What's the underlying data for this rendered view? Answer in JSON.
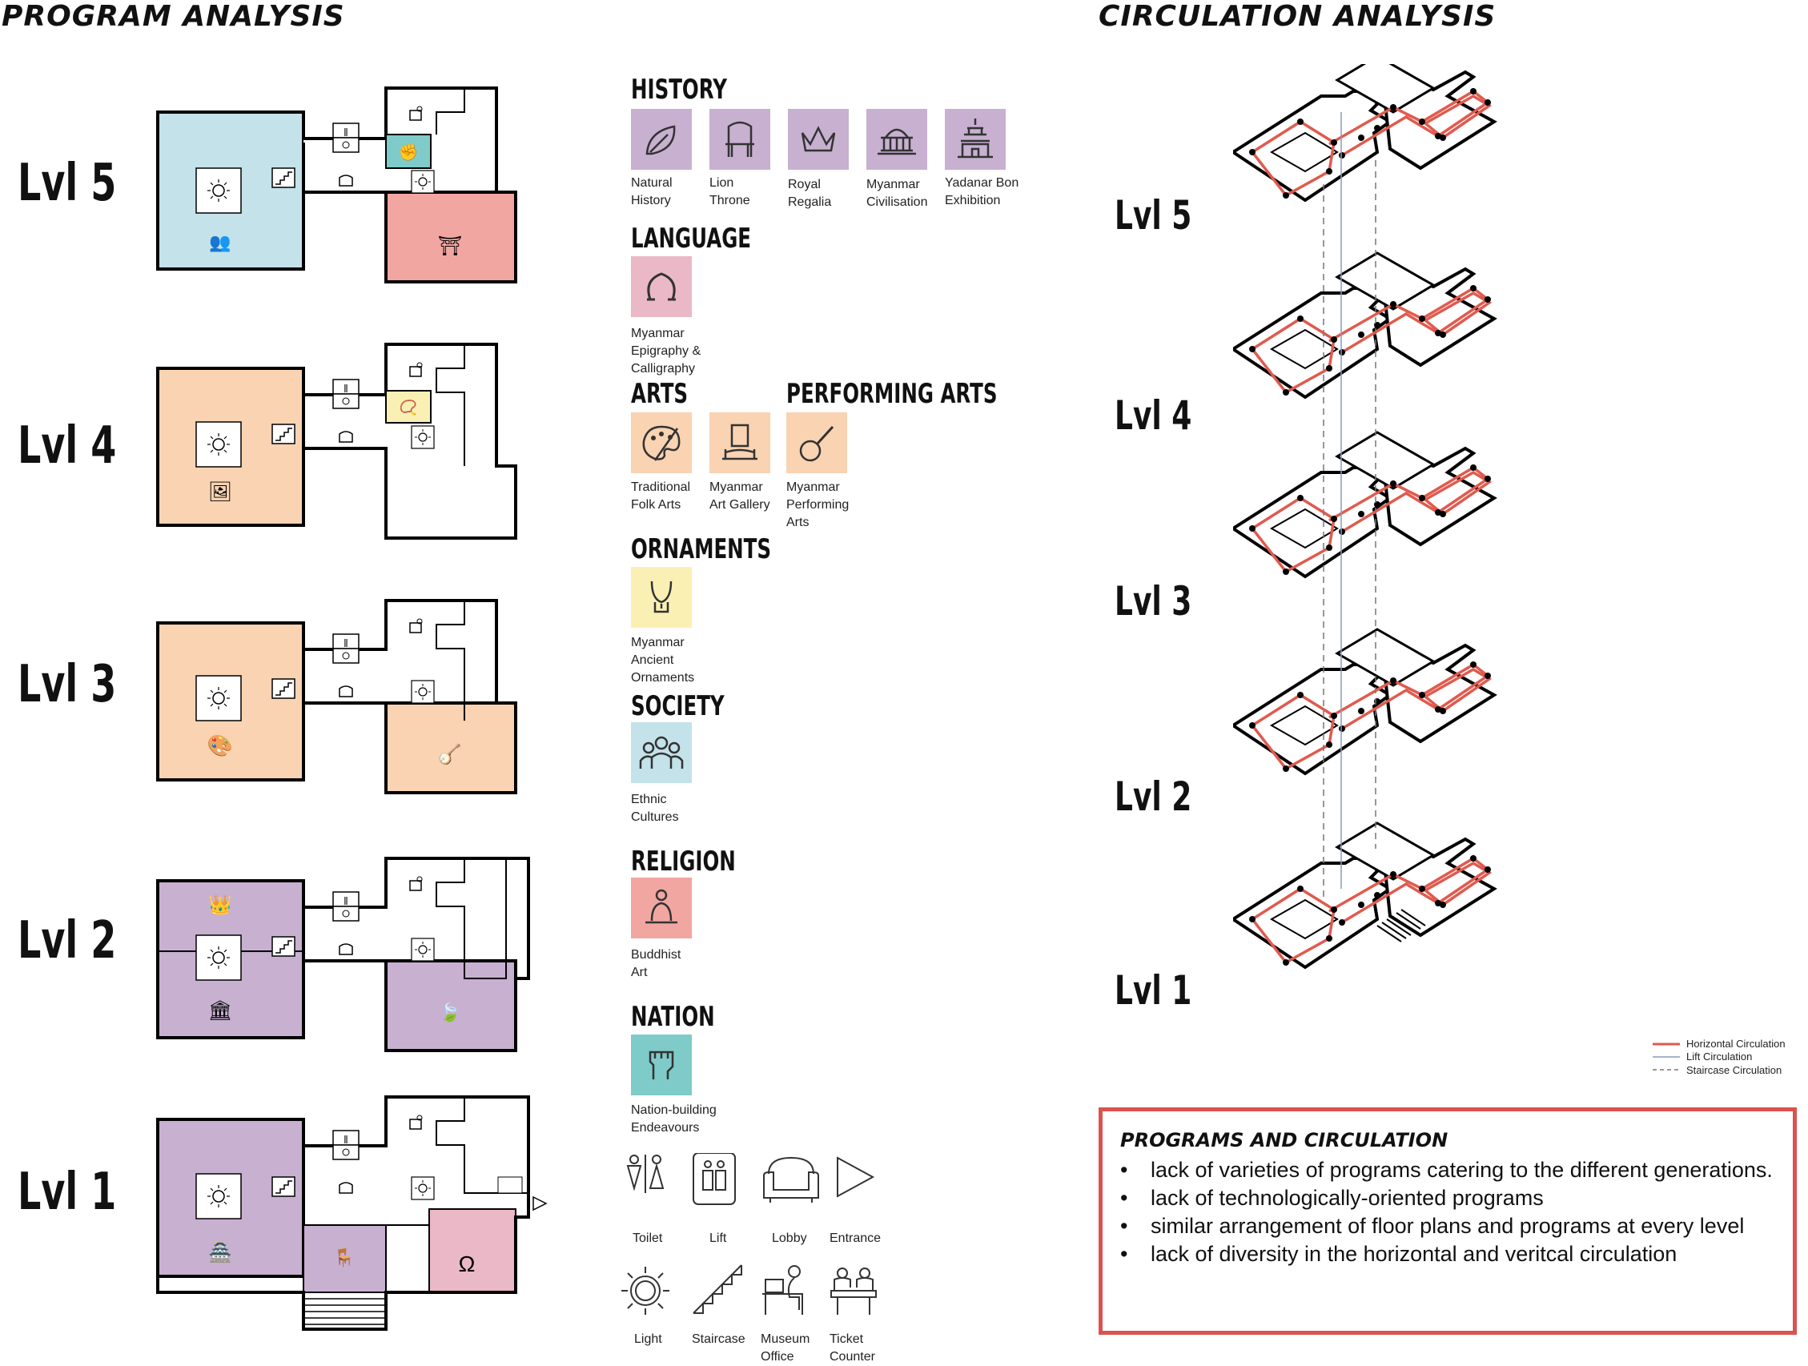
{
  "headers": {
    "program": "PROGRAM ANALYSIS",
    "circulation": "CIRCULATION ANALYSIS"
  },
  "levels": [
    "Lvl 5",
    "Lvl 4",
    "Lvl 3",
    "Lvl 2",
    "Lvl 1"
  ],
  "colors": {
    "history": "#c8b0d1",
    "language": "#eab8c6",
    "arts": "#f9d3b2",
    "ornaments": "#fbf0b4",
    "society": "#c3e2ea",
    "religion": "#f2a6a2",
    "nation": "#7ecbc9",
    "circulation_red": "#e05a4e",
    "lift": "#8a9bc0"
  },
  "legend": {
    "history": {
      "title": "HISTORY",
      "items": [
        {
          "icon": "leaf-icon",
          "lines": [
            "Natural",
            "History"
          ]
        },
        {
          "icon": "throne-icon",
          "lines": [
            "Lion",
            "Throne"
          ]
        },
        {
          "icon": "crown-icon",
          "lines": [
            "Royal",
            "Regalia"
          ]
        },
        {
          "icon": "temple-icon",
          "lines": [
            "Myanmar",
            "Civilisation"
          ]
        },
        {
          "icon": "palace-icon",
          "lines": [
            "Yadanar Bon",
            "Exhibition"
          ]
        }
      ]
    },
    "language": {
      "title": "LANGUAGE",
      "items": [
        {
          "icon": "script-icon",
          "lines": [
            "Myanmar",
            "Epigraphy &",
            "Calligraphy"
          ]
        }
      ]
    },
    "arts": {
      "title": "ARTS",
      "items": [
        {
          "icon": "palette-icon",
          "lines": [
            "Traditional",
            "Folk Arts"
          ]
        },
        {
          "icon": "gallery-icon",
          "lines": [
            "Myanmar",
            "Art Gallery"
          ]
        }
      ]
    },
    "performing_arts": {
      "title": "PERFORMING ARTS",
      "items": [
        {
          "icon": "banjo-icon",
          "lines": [
            "Myanmar",
            "Performing",
            "Arts"
          ]
        }
      ]
    },
    "ornaments": {
      "title": "ORNAMENTS",
      "items": [
        {
          "icon": "necklace-icon",
          "lines": [
            "Myanmar",
            "Ancient",
            "Ornaments"
          ]
        }
      ]
    },
    "society": {
      "title": "SOCIETY",
      "items": [
        {
          "icon": "people-icon",
          "lines": [
            "Ethnic",
            "Cultures"
          ]
        }
      ]
    },
    "religion": {
      "title": "RELIGION",
      "items": [
        {
          "icon": "buddha-icon",
          "lines": [
            "Buddhist",
            "Art"
          ]
        }
      ]
    },
    "nation": {
      "title": "NATION",
      "items": [
        {
          "icon": "fist-icon",
          "lines": [
            "Nation-building",
            "Endeavours"
          ]
        }
      ]
    }
  },
  "facilities": [
    {
      "icon": "toilet-icon",
      "lines": [
        "Toilet"
      ]
    },
    {
      "icon": "lift-icon",
      "lines": [
        "Lift"
      ]
    },
    {
      "icon": "sofa-icon",
      "lines": [
        "Lobby"
      ]
    },
    {
      "icon": "entrance-icon",
      "lines": [
        "Entrance"
      ]
    },
    {
      "icon": "light-icon",
      "lines": [
        "Light"
      ]
    },
    {
      "icon": "staircase-icon",
      "lines": [
        "Staircase"
      ]
    },
    {
      "icon": "office-icon",
      "lines": [
        "Museum",
        "Office"
      ]
    },
    {
      "icon": "ticket-icon",
      "lines": [
        "Ticket",
        "Counter"
      ]
    }
  ],
  "circulation_legend": [
    "Horizontal Circulation",
    "Lift Circulation",
    "Staircase Circulation"
  ],
  "summary": {
    "title": "PROGRAMS AND CIRCULATION",
    "points": [
      "lack of varieties of programs catering to the different generations.",
      "lack of technologically-oriented programs",
      "similar arrangement of floor plans and programs at every level",
      "lack of diversity in the horizontal and veritcal circulation"
    ]
  }
}
